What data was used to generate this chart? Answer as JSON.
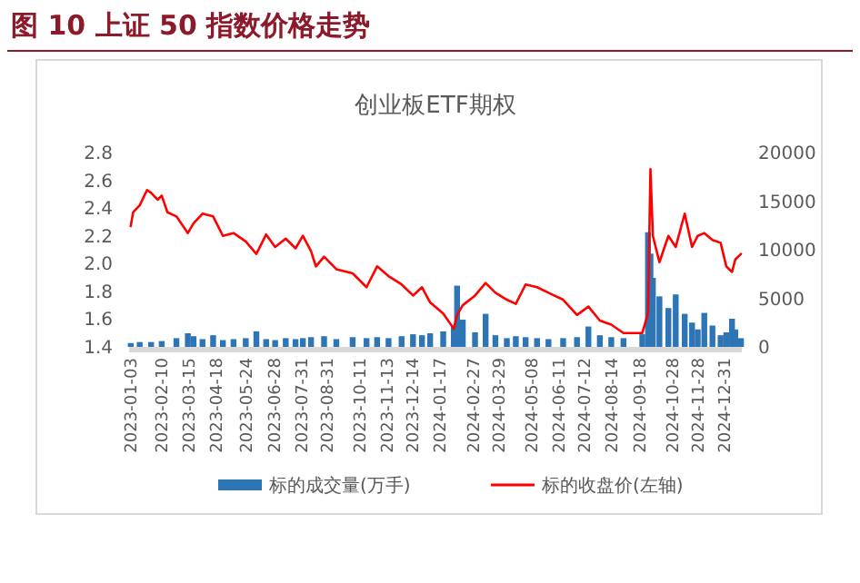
{
  "chart_data": {
    "type": "line",
    "title": "图 10 上证 50 指数价格走势",
    "subtitle": "创业板ETF期权",
    "xlim": [
      "2023-01-01",
      "2025-01-21"
    ],
    "xticks": [
      "2023-01-03",
      "2023-02-10",
      "2023-03-15",
      "2023-04-18",
      "2023-05-24",
      "2023-06-28",
      "2023-07-31",
      "2023-08-31",
      "2023-10-11",
      "2023-11-13",
      "2023-12-14",
      "2024-01-17",
      "2024-02-27",
      "2024-03-29",
      "2024-05-08",
      "2024-06-11",
      "2024-07-12",
      "2024-08-14",
      "2024-09-18",
      "2024-10-28",
      "2024-11-28",
      "2024-12-31"
    ],
    "ylim": [
      1.4,
      2.8
    ],
    "yticks": [
      1.4,
      1.6,
      1.8,
      {
        "value": 2,
        "label": "2.0"
      },
      2.2,
      2.4,
      2.6,
      2.8
    ],
    "y2lim": [
      0,
      20000
    ],
    "y2ticks": [
      0,
      5000,
      10000,
      15000,
      20000
    ],
    "legend": "bottom",
    "grid": false,
    "series": [
      {
        "name": "标的成交量(万手)",
        "type": "bar",
        "axis": "y2",
        "color": "#2e75b6",
        "x": [
          "2023-01-03",
          "2023-01-14",
          "2023-01-28",
          "2023-02-10",
          "2023-02-28",
          "2023-03-14",
          "2023-03-21",
          "2023-04-01",
          "2023-04-14",
          "2023-04-26",
          "2023-05-09",
          "2023-05-24",
          "2023-06-06",
          "2023-06-18",
          "2023-06-29",
          "2023-07-12",
          "2023-07-24",
          "2023-08-02",
          "2023-08-12",
          "2023-08-28",
          "2023-09-12",
          "2023-10-02",
          "2023-10-19",
          "2023-11-01",
          "2023-11-15",
          "2023-12-01",
          "2023-12-15",
          "2023-12-26",
          "2024-01-05",
          "2024-01-21",
          "2024-02-03",
          "2024-02-07",
          "2024-02-14",
          "2024-02-29",
          "2024-03-13",
          "2024-03-25",
          "2024-04-08",
          "2024-04-19",
          "2024-05-01",
          "2024-05-15",
          "2024-05-29",
          "2024-06-16",
          "2024-07-03",
          "2024-07-17",
          "2024-07-31",
          "2024-08-14",
          "2024-08-29",
          "2024-09-21",
          "2024-09-28",
          "2024-10-01",
          "2024-10-04",
          "2024-10-12",
          "2024-10-23",
          "2024-11-01",
          "2024-11-12",
          "2024-11-21",
          "2024-11-28",
          "2024-12-06",
          "2024-12-16",
          "2024-12-26",
          "2025-01-02",
          "2025-01-09",
          "2025-01-13",
          "2025-01-20"
        ],
        "values": [
          400,
          500,
          500,
          600,
          900,
          1400,
          1100,
          800,
          1200,
          700,
          800,
          900,
          1600,
          800,
          700,
          900,
          800,
          900,
          1000,
          1100,
          800,
          1000,
          900,
          1000,
          900,
          1100,
          1300,
          1200,
          1400,
          1600,
          2200,
          6300,
          2800,
          1500,
          3400,
          1200,
          900,
          1100,
          1000,
          900,
          800,
          900,
          1000,
          2100,
          1200,
          1000,
          900,
          1300,
          11800,
          9600,
          7100,
          5200,
          4000,
          5400,
          3400,
          2500,
          1800,
          3500,
          2200,
          1200,
          1500,
          2900,
          1800,
          900
        ]
      },
      {
        "name": "标的收盘价(左轴)",
        "color": "#ff0000",
        "x": [
          "2023-01-03",
          "2023-01-06",
          "2023-01-14",
          "2023-01-23",
          "2023-01-28",
          "2023-02-05",
          "2023-02-10",
          "2023-02-17",
          "2023-02-28",
          "2023-03-14",
          "2023-03-21",
          "2023-04-01",
          "2023-04-14",
          "2023-04-26",
          "2023-05-09",
          "2023-05-24",
          "2023-06-06",
          "2023-06-18",
          "2023-06-29",
          "2023-07-12",
          "2023-07-24",
          "2023-08-02",
          "2023-08-12",
          "2023-08-18",
          "2023-08-28",
          "2023-09-12",
          "2023-10-02",
          "2023-10-19",
          "2023-11-01",
          "2023-11-15",
          "2023-12-01",
          "2023-12-15",
          "2023-12-26",
          "2024-01-05",
          "2024-01-21",
          "2024-02-03",
          "2024-02-07",
          "2024-02-14",
          "2024-02-29",
          "2024-03-13",
          "2024-03-25",
          "2024-04-08",
          "2024-04-19",
          "2024-05-01",
          "2024-05-15",
          "2024-05-29",
          "2024-06-16",
          "2024-07-03",
          "2024-07-17",
          "2024-07-31",
          "2024-08-14",
          "2024-08-29",
          "2024-09-21",
          "2024-09-28",
          "2024-10-01",
          "2024-10-04",
          "2024-10-12",
          "2024-10-23",
          "2024-11-01",
          "2024-11-12",
          "2024-11-21",
          "2024-11-28",
          "2024-12-06",
          "2024-12-16",
          "2024-12-26",
          "2025-01-02",
          "2025-01-09",
          "2025-01-13",
          "2025-01-20"
        ],
        "values": [
          2.27,
          2.37,
          2.42,
          2.53,
          2.51,
          2.46,
          2.49,
          2.37,
          2.34,
          2.22,
          2.29,
          2.36,
          2.34,
          2.2,
          2.22,
          2.16,
          2.07,
          2.21,
          2.12,
          2.18,
          2.11,
          2.2,
          2.09,
          1.98,
          2.05,
          1.96,
          1.93,
          1.83,
          1.98,
          1.91,
          1.85,
          1.77,
          1.83,
          1.72,
          1.64,
          1.53,
          1.63,
          1.7,
          1.77,
          1.86,
          1.79,
          1.74,
          1.71,
          1.85,
          1.83,
          1.79,
          1.74,
          1.63,
          1.69,
          1.59,
          1.56,
          1.5,
          1.5,
          1.64,
          2.68,
          2.2,
          2.01,
          2.2,
          2.12,
          2.36,
          2.12,
          2.2,
          2.22,
          2.17,
          2.15,
          1.98,
          1.94,
          2.03,
          2.07
        ]
      }
    ]
  }
}
